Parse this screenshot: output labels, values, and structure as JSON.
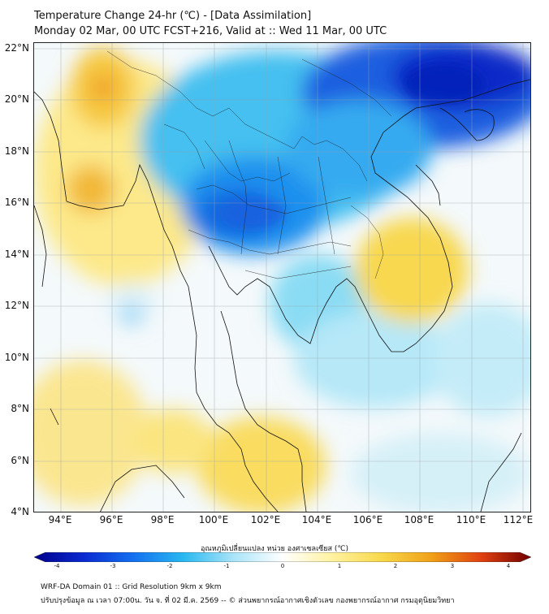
{
  "title_line1": "Temperature Change 24-hr (℃) - [Data Assimilation]",
  "title_line2": "Monday 02 Mar, 00 UTC FCST+216, Valid at :: Wed 11 Mar, 00 UTC",
  "lat_labels": [
    "22°N",
    "20°N",
    "18°N",
    "16°N",
    "14°N",
    "12°N",
    "10°N",
    "8°N",
    "6°N",
    "4°N"
  ],
  "lon_labels": [
    "94°E",
    "96°E",
    "98°E",
    "100°E",
    "102°E",
    "104°E",
    "106°E",
    "108°E",
    "110°E",
    "112°E"
  ],
  "colorbar": {
    "title": "อุณหภูมิเปลี่ยนแปลง หน่วย องศาเซลเซียส (℃)",
    "ticks": [
      "-4",
      "-3",
      "-2",
      "-1",
      "0",
      "1",
      "2",
      "3",
      "4"
    ],
    "colors": [
      "#00008a",
      "#0a2ad0",
      "#1470f0",
      "#28b8f0",
      "#a8e4f8",
      "#ffffff",
      "#fff2a0",
      "#f8d84a",
      "#f0a018",
      "#e04010",
      "#700000"
    ]
  },
  "footer_line1": "WRF-DA Domain 01 :: Grid Resolution 9km x 9km",
  "footer_line2": "ปรับปรุงข้อมูล ณ เวลา 07:00น. วัน จ. ที่ 02 มี.ค. 2569 -- © ส่วนพยากรณ์อากาศเชิงตัวเลข กองพยากรณ์อากาศ กรมอุตุนิยมวิทยา"
}
